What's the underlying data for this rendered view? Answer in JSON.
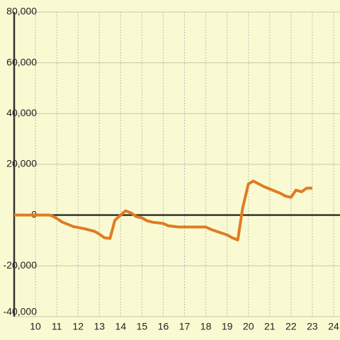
{
  "chart_data": {
    "type": "line",
    "x": [
      9.0,
      10.67,
      10.9,
      11.27,
      11.77,
      12.27,
      12.77,
      13.0,
      13.23,
      13.5,
      13.73,
      14.0,
      14.23,
      14.5,
      14.73,
      15.0,
      15.23,
      15.5,
      16.0,
      16.23,
      16.73,
      18.0,
      18.23,
      18.5,
      19.0,
      19.23,
      19.5,
      19.73,
      20.0,
      20.23,
      20.73,
      21.0,
      21.23,
      21.5,
      21.73,
      22.0,
      22.23,
      22.5,
      22.73,
      23.0
    ],
    "series": [
      {
        "color": "#e07b24",
        "values": [
          0,
          0,
          -800,
          -2800,
          -4500,
          -5300,
          -6400,
          -7500,
          -8900,
          -9200,
          -2000,
          0,
          1700,
          800,
          -600,
          -1100,
          -2200,
          -2800,
          -3300,
          -4200,
          -4700,
          -4700,
          -5600,
          -6400,
          -7800,
          -8900,
          -9800,
          2800,
          12300,
          13400,
          11200,
          10300,
          9500,
          8600,
          7500,
          7000,
          9800,
          9200,
          10600,
          10600
        ]
      }
    ],
    "xlim": [
      9.0,
      24.3
    ],
    "xticks": [
      10,
      11,
      12,
      13,
      14,
      15,
      16,
      17,
      18,
      19,
      20,
      21,
      22,
      23,
      24
    ],
    "ylim": [
      -40000,
      80000
    ],
    "yticks": [
      {
        "value": -40000,
        "label": "-40,000"
      },
      {
        "value": -20000,
        "label": "-20,000"
      },
      0,
      {
        "value": 20000,
        "label": "20,000"
      },
      {
        "value": 40000,
        "label": "40,000"
      },
      {
        "value": 60000,
        "label": "60,000"
      },
      {
        "value": 80000,
        "label": "80,000"
      }
    ],
    "grid": true
  }
}
